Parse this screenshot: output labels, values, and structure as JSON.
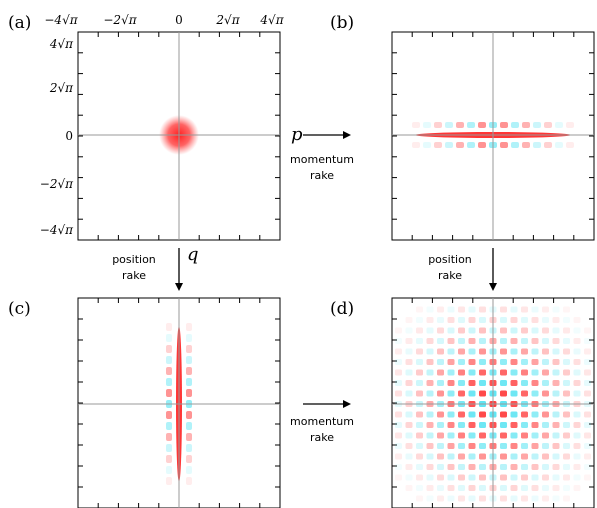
{
  "colors": {
    "positive": "#ff2020",
    "negative": "#40e0f0",
    "frame": "#000000",
    "axis": "#999999"
  },
  "panels": [
    {
      "id": "a",
      "label": "(a)",
      "pattern": "gaussian"
    },
    {
      "id": "b",
      "label": "(b)",
      "pattern": "momentum_rake"
    },
    {
      "id": "c",
      "label": "(c)",
      "pattern": "position_rake"
    },
    {
      "id": "d",
      "label": "(d)",
      "pattern": "grid"
    }
  ],
  "axes": {
    "top_ticks": [
      "−4√π",
      "−2√π",
      "0",
      "2√π",
      "4√π"
    ],
    "left_ticks": [
      "4√π",
      "2√π",
      "0",
      "−2√π",
      "−4√π"
    ],
    "p_label": "p",
    "q_label": "q"
  },
  "operations": {
    "momentum_rake_line1": "momentum",
    "momentum_rake_line2": "rake",
    "position_rake_line1": "position",
    "position_rake_line2": "rake"
  }
}
